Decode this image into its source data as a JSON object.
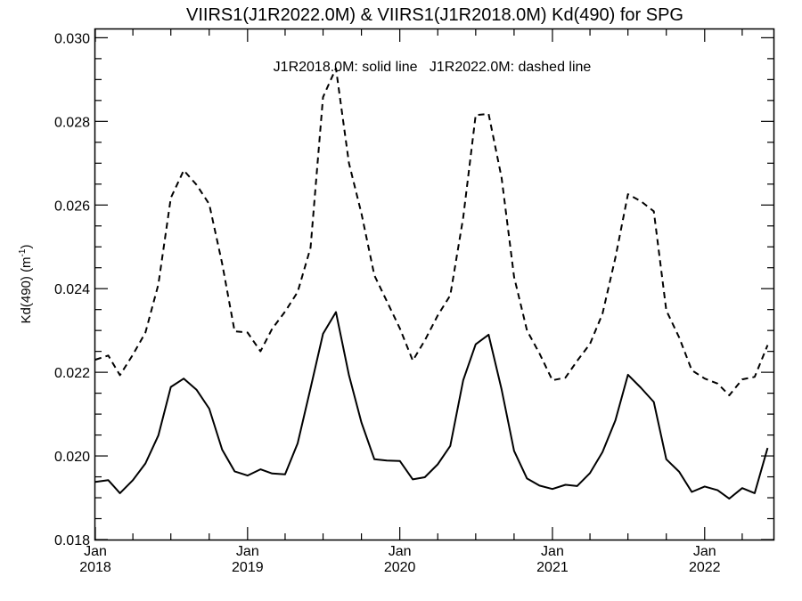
{
  "chart_data": {
    "type": "line",
    "title": "VIIRS1(J1R2022.0M) & VIIRS1(J1R2018.0M)  Kd(490) for SPG",
    "annotation": "J1R2018.0M: solid line   J1R2022.0M: dashed line",
    "ylabel": "Kd(490) (m",
    "ylabel_superscript": "-1",
    "ylabel_close": ")",
    "xlabel": "",
    "ylim": [
      0.018,
      0.0302
    ],
    "xlim": [
      "2018-01-01",
      "2022-06-15"
    ],
    "x_ticks": [
      {
        "month": "Jan",
        "year": "2018",
        "date": "2018-01-01"
      },
      {
        "month": "Jan",
        "year": "2019",
        "date": "2019-01-01"
      },
      {
        "month": "Jan",
        "year": "2020",
        "date": "2020-01-01"
      },
      {
        "month": "Jan",
        "year": "2021",
        "date": "2021-01-01"
      },
      {
        "month": "Jan",
        "year": "2022",
        "date": "2022-01-01"
      }
    ],
    "y_ticks": [
      "0.018",
      "0.020",
      "0.022",
      "0.024",
      "0.026",
      "0.028",
      "0.030"
    ],
    "grid": false,
    "series": [
      {
        "style": "solid",
        "color": "#000000",
        "x": [
          "2018-01-01",
          "2018-02-01",
          "2018-03-01",
          "2018-04-01",
          "2018-05-01",
          "2018-06-01",
          "2018-07-01",
          "2018-08-01",
          "2018-09-01",
          "2018-10-01",
          "2018-11-01",
          "2018-12-01",
          "2019-01-01",
          "2019-02-01",
          "2019-03-01",
          "2019-04-01",
          "2019-05-01",
          "2019-06-01",
          "2019-07-01",
          "2019-08-01",
          "2019-09-01",
          "2019-10-01",
          "2019-11-01",
          "2019-12-01",
          "2020-01-01",
          "2020-02-01",
          "2020-03-01",
          "2020-04-01",
          "2020-05-01",
          "2020-06-01",
          "2020-07-01",
          "2020-08-01",
          "2020-09-01",
          "2020-10-01",
          "2020-11-01",
          "2020-12-01",
          "2021-01-01",
          "2021-02-01",
          "2021-03-01",
          "2021-04-01",
          "2021-05-01",
          "2021-06-01",
          "2021-07-01",
          "2021-08-01",
          "2021-09-01",
          "2021-10-01",
          "2021-11-01",
          "2021-12-01",
          "2022-01-01",
          "2022-02-01",
          "2022-03-01",
          "2022-04-01",
          "2022-05-01",
          "2022-06-01"
        ],
        "values": [
          0.01938,
          0.01942,
          0.01911,
          0.01942,
          0.01982,
          0.02049,
          0.02165,
          0.02185,
          0.02158,
          0.02113,
          0.02015,
          0.01963,
          0.01953,
          0.01968,
          0.01958,
          0.01956,
          0.0203,
          0.02162,
          0.02292,
          0.02344,
          0.02193,
          0.0208,
          0.01992,
          0.01989,
          0.01988,
          0.01944,
          0.01949,
          0.0198,
          0.02024,
          0.02181,
          0.02267,
          0.0229,
          0.02159,
          0.02012,
          0.01946,
          0.01929,
          0.01921,
          0.01931,
          0.01928,
          0.01959,
          0.02009,
          0.02085,
          0.02194,
          0.02163,
          0.02129,
          0.01992,
          0.01962,
          0.01914,
          0.01927,
          0.01918,
          0.01898,
          0.01923,
          0.01911,
          0.02019
        ]
      },
      {
        "style": "dashed",
        "color": "#000000",
        "x": [
          "2018-01-01",
          "2018-02-01",
          "2018-03-01",
          "2018-04-01",
          "2018-05-01",
          "2018-06-01",
          "2018-07-01",
          "2018-08-01",
          "2018-09-01",
          "2018-10-01",
          "2018-11-01",
          "2018-12-01",
          "2019-01-01",
          "2019-02-01",
          "2019-03-01",
          "2019-04-01",
          "2019-05-01",
          "2019-06-01",
          "2019-07-01",
          "2019-08-01",
          "2019-09-01",
          "2019-10-01",
          "2019-11-01",
          "2019-12-01",
          "2020-01-01",
          "2020-02-01",
          "2020-03-01",
          "2020-04-01",
          "2020-05-01",
          "2020-06-01",
          "2020-07-01",
          "2020-08-01",
          "2020-09-01",
          "2020-10-01",
          "2020-11-01",
          "2020-12-01",
          "2021-01-01",
          "2021-02-01",
          "2021-03-01",
          "2021-04-01",
          "2021-05-01",
          "2021-06-01",
          "2021-07-01",
          "2021-08-01",
          "2021-09-01",
          "2021-10-01",
          "2021-11-01",
          "2021-12-01",
          "2022-01-01",
          "2022-02-01",
          "2022-03-01",
          "2022-04-01",
          "2022-05-01",
          "2022-06-01"
        ],
        "values": [
          0.0223,
          0.0224,
          0.02193,
          0.02242,
          0.02295,
          0.0241,
          0.02617,
          0.02683,
          0.02648,
          0.02602,
          0.0246,
          0.02298,
          0.02295,
          0.0225,
          0.02304,
          0.02345,
          0.02392,
          0.02498,
          0.02858,
          0.02927,
          0.027,
          0.0258,
          0.02432,
          0.0237,
          0.02305,
          0.02228,
          0.02276,
          0.02336,
          0.02384,
          0.0257,
          0.02815,
          0.02818,
          0.02665,
          0.02428,
          0.023,
          0.02245,
          0.02181,
          0.02187,
          0.02227,
          0.02268,
          0.0234,
          0.02474,
          0.02626,
          0.02609,
          0.02585,
          0.02348,
          0.02283,
          0.02205,
          0.02185,
          0.02173,
          0.02145,
          0.02183,
          0.02189,
          0.02265
        ]
      }
    ]
  }
}
